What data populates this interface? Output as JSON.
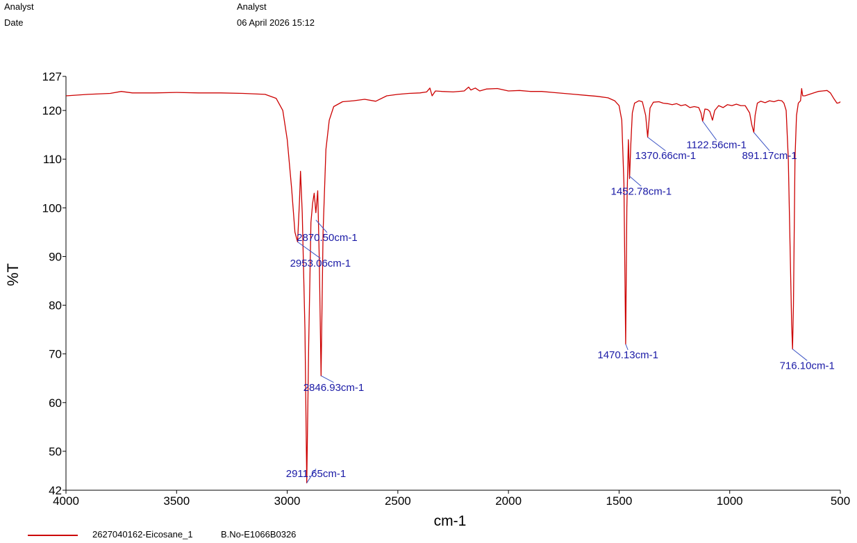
{
  "header": {
    "analyst_label": "Analyst",
    "analyst_value": "Analyst",
    "date_label": "Date",
    "date_value": "06 April 2026 15:12"
  },
  "legend": {
    "sample_name": "2627040162-Eicosane_1",
    "batch": "B.No-E1066B0326",
    "color": "#cc0000"
  },
  "chart_data": {
    "type": "line",
    "title": "",
    "xlabel": "cm-1",
    "ylabel": "%T",
    "xlim": [
      4000,
      500
    ],
    "ylim": [
      42,
      127
    ],
    "x_ticks": [
      4000,
      3500,
      3000,
      2500,
      2000,
      1500,
      1000,
      500
    ],
    "y_ticks": [
      127,
      120,
      110,
      100,
      90,
      80,
      70,
      60,
      50,
      42
    ],
    "grid": false,
    "series": [
      {
        "name": "2627040162-Eicosane_1",
        "color": "#cc0000",
        "points": [
          [
            4000,
            123.0
          ],
          [
            3900,
            123.3
          ],
          [
            3800,
            123.5
          ],
          [
            3750,
            123.9
          ],
          [
            3700,
            123.6
          ],
          [
            3600,
            123.6
          ],
          [
            3500,
            123.7
          ],
          [
            3400,
            123.6
          ],
          [
            3300,
            123.6
          ],
          [
            3200,
            123.5
          ],
          [
            3100,
            123.3
          ],
          [
            3050,
            122.5
          ],
          [
            3020,
            120.0
          ],
          [
            3000,
            114.0
          ],
          [
            2980,
            104.0
          ],
          [
            2965,
            95.0
          ],
          [
            2953.06,
            93.0
          ],
          [
            2945,
            101.0
          ],
          [
            2940,
            107.5
          ],
          [
            2932,
            99.0
          ],
          [
            2920,
            75.0
          ],
          [
            2911.65,
            43.5
          ],
          [
            2903,
            72.0
          ],
          [
            2893,
            97.0
          ],
          [
            2885,
            101.0
          ],
          [
            2878,
            103.0
          ],
          [
            2870.5,
            99.0
          ],
          [
            2862,
            103.5
          ],
          [
            2855,
            89.0
          ],
          [
            2846.93,
            65.5
          ],
          [
            2838,
            95.0
          ],
          [
            2825,
            112.0
          ],
          [
            2810,
            118.0
          ],
          [
            2790,
            120.8
          ],
          [
            2750,
            121.8
          ],
          [
            2700,
            122.0
          ],
          [
            2650,
            122.3
          ],
          [
            2600,
            121.9
          ],
          [
            2550,
            123.0
          ],
          [
            2500,
            123.3
          ],
          [
            2450,
            123.5
          ],
          [
            2400,
            123.6
          ],
          [
            2370,
            123.8
          ],
          [
            2355,
            124.6
          ],
          [
            2345,
            123.0
          ],
          [
            2330,
            124.0
          ],
          [
            2300,
            123.9
          ],
          [
            2250,
            123.8
          ],
          [
            2200,
            124.0
          ],
          [
            2180,
            124.8
          ],
          [
            2170,
            124.2
          ],
          [
            2150,
            124.6
          ],
          [
            2130,
            124.0
          ],
          [
            2100,
            124.4
          ],
          [
            2050,
            124.5
          ],
          [
            2000,
            124.0
          ],
          [
            1950,
            124.1
          ],
          [
            1900,
            123.9
          ],
          [
            1850,
            123.9
          ],
          [
            1800,
            123.7
          ],
          [
            1750,
            123.5
          ],
          [
            1700,
            123.3
          ],
          [
            1650,
            123.1
          ],
          [
            1600,
            122.9
          ],
          [
            1550,
            122.6
          ],
          [
            1520,
            122.0
          ],
          [
            1500,
            121.0
          ],
          [
            1488,
            118.0
          ],
          [
            1478,
            105.0
          ],
          [
            1470.13,
            72.0
          ],
          [
            1465,
            100.0
          ],
          [
            1458,
            114.0
          ],
          [
            1452.78,
            106.0
          ],
          [
            1447,
            113.0
          ],
          [
            1440,
            119.5
          ],
          [
            1430,
            121.5
          ],
          [
            1410,
            122.0
          ],
          [
            1395,
            121.8
          ],
          [
            1380,
            119.0
          ],
          [
            1370.66,
            114.5
          ],
          [
            1360,
            120.5
          ],
          [
            1345,
            121.7
          ],
          [
            1320,
            121.8
          ],
          [
            1300,
            121.5
          ],
          [
            1280,
            121.4
          ],
          [
            1260,
            121.2
          ],
          [
            1240,
            121.4
          ],
          [
            1220,
            121.0
          ],
          [
            1200,
            121.2
          ],
          [
            1180,
            120.6
          ],
          [
            1160,
            120.8
          ],
          [
            1140,
            120.6
          ],
          [
            1130,
            119.5
          ],
          [
            1122.56,
            117.8
          ],
          [
            1112,
            120.3
          ],
          [
            1100,
            120.2
          ],
          [
            1090,
            119.8
          ],
          [
            1078,
            118.0
          ],
          [
            1068,
            120.0
          ],
          [
            1050,
            121.0
          ],
          [
            1030,
            120.6
          ],
          [
            1010,
            121.2
          ],
          [
            990,
            121.0
          ],
          [
            970,
            121.3
          ],
          [
            950,
            121.0
          ],
          [
            930,
            121.0
          ],
          [
            910,
            119.5
          ],
          [
            900,
            117.0
          ],
          [
            891.17,
            115.5
          ],
          [
            885,
            119.0
          ],
          [
            875,
            121.5
          ],
          [
            860,
            121.9
          ],
          [
            840,
            121.6
          ],
          [
            820,
            122.0
          ],
          [
            800,
            121.8
          ],
          [
            780,
            122.1
          ],
          [
            765,
            122.0
          ],
          [
            755,
            121.5
          ],
          [
            745,
            120.0
          ],
          [
            735,
            110.0
          ],
          [
            720,
            76.0
          ],
          [
            716.1,
            71.0
          ],
          [
            712,
            80.0
          ],
          [
            705,
            110.0
          ],
          [
            698,
            119.0
          ],
          [
            690,
            121.5
          ],
          [
            680,
            122.0
          ],
          [
            675,
            124.5
          ],
          [
            670,
            123.0
          ],
          [
            660,
            123.0
          ],
          [
            640,
            123.3
          ],
          [
            620,
            123.6
          ],
          [
            600,
            123.9
          ],
          [
            580,
            124.0
          ],
          [
            560,
            124.1
          ],
          [
            545,
            123.6
          ],
          [
            530,
            122.5
          ],
          [
            515,
            121.5
          ],
          [
            505,
            121.6
          ],
          [
            500,
            121.8
          ]
        ]
      }
    ],
    "annotations": [
      {
        "x": 2953.06,
        "y": 93.0,
        "label": "2953.06cm-1",
        "lx": 2850,
        "ly": 88.2
      },
      {
        "x": 2870.5,
        "y": 97.5,
        "label": "2870.50cm-1",
        "lx": 2820,
        "ly": 93.5
      },
      {
        "x": 2911.65,
        "y": 43.5,
        "label": "2911.65cm-1",
        "lx": 2870,
        "ly": 45.0
      },
      {
        "x": 2846.93,
        "y": 65.5,
        "label": "2846.93cm-1",
        "lx": 2790,
        "ly": 62.7
      },
      {
        "x": 1470.13,
        "y": 72.0,
        "label": "1470.13cm-1",
        "lx": 1460,
        "ly": 69.4
      },
      {
        "x": 1452.78,
        "y": 106.5,
        "label": "1452.78cm-1",
        "lx": 1400,
        "ly": 103.0
      },
      {
        "x": 1370.66,
        "y": 114.5,
        "label": "1370.66cm-1",
        "lx": 1290,
        "ly": 110.3
      },
      {
        "x": 1122.56,
        "y": 117.8,
        "label": "1122.56cm-1",
        "lx": 1060,
        "ly": 112.5
      },
      {
        "x": 891.17,
        "y": 115.5,
        "label": "891.17cm-1",
        "lx": 820,
        "ly": 110.3
      },
      {
        "x": 716.1,
        "y": 71.0,
        "label": "716.10cm-1",
        "lx": 650,
        "ly": 67.2
      }
    ]
  }
}
